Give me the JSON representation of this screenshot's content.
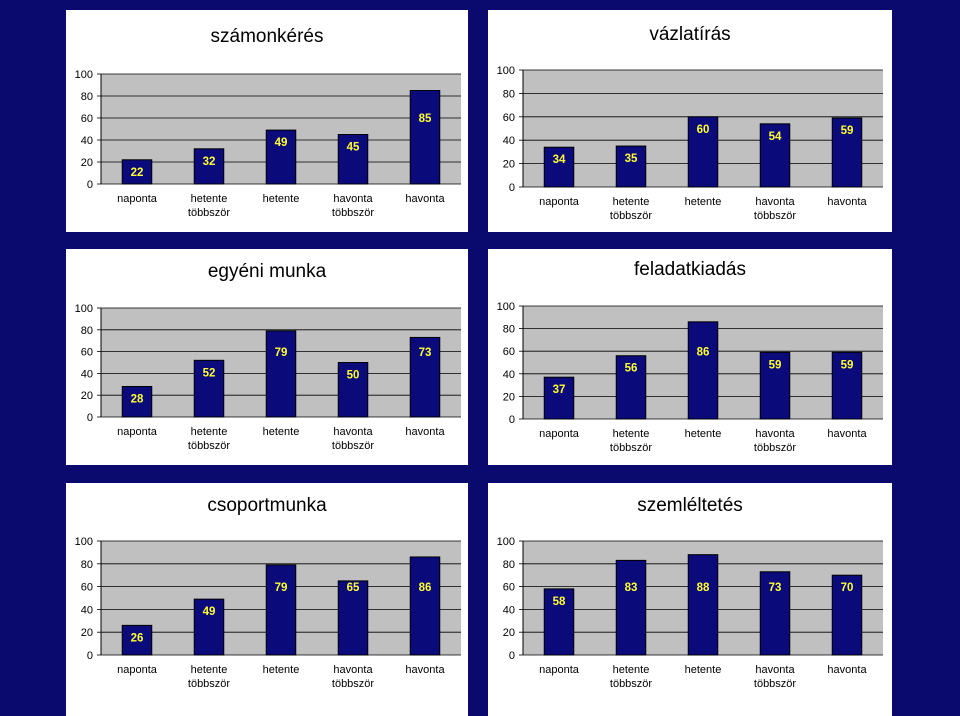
{
  "colors": {
    "background": "#0a0a6e",
    "bar_fill": "#0a0a7a",
    "plot_area": "#c0c0c0",
    "value_label": "#ffff33"
  },
  "chart_data": [
    {
      "type": "bar",
      "title": "számonkérés",
      "categories": [
        [
          "naponta"
        ],
        [
          "hetente",
          "többször"
        ],
        [
          "hetente"
        ],
        [
          "havonta",
          "többször"
        ],
        [
          "havonta"
        ]
      ],
      "values": [
        22,
        32,
        49,
        45,
        85
      ],
      "yticks": [
        "100",
        "80",
        "60",
        "40",
        "20",
        "0"
      ],
      "ylim": [
        0,
        100
      ]
    },
    {
      "type": "bar",
      "title": "vázlatírás",
      "categories": [
        [
          "naponta"
        ],
        [
          "hetente",
          "többször"
        ],
        [
          "hetente"
        ],
        [
          "havonta",
          "többször"
        ],
        [
          "havonta"
        ]
      ],
      "values": [
        34,
        35,
        60,
        54,
        59
      ],
      "yticks": [
        "100",
        "80",
        "60",
        "40",
        "20",
        "0"
      ],
      "ylim": [
        0,
        100
      ]
    },
    {
      "type": "bar",
      "title": "egyéni munka",
      "categories": [
        [
          "naponta"
        ],
        [
          "hetente",
          "többször"
        ],
        [
          "hetente"
        ],
        [
          "havonta",
          "többször"
        ],
        [
          "havonta"
        ]
      ],
      "values": [
        28,
        52,
        79,
        50,
        73
      ],
      "yticks": [
        "100",
        "80",
        "60",
        "40",
        "20",
        "0"
      ],
      "ylim": [
        0,
        100
      ]
    },
    {
      "type": "bar",
      "title": "feladatkiadás",
      "categories": [
        [
          "naponta"
        ],
        [
          "hetente",
          "többször"
        ],
        [
          "hetente"
        ],
        [
          "havonta",
          "többször"
        ],
        [
          "havonta"
        ]
      ],
      "values": [
        37,
        56,
        86,
        59,
        59
      ],
      "yticks": [
        "100",
        "80",
        "60",
        "40",
        "20",
        "0"
      ],
      "ylim": [
        0,
        100
      ]
    },
    {
      "type": "bar",
      "title": "csoportmunka",
      "categories": [
        [
          "naponta"
        ],
        [
          "hetente",
          "többször"
        ],
        [
          "hetente"
        ],
        [
          "havonta",
          "többször"
        ],
        [
          "havonta"
        ]
      ],
      "values": [
        26,
        49,
        79,
        65,
        86
      ],
      "yticks": [
        "100",
        "80",
        "60",
        "40",
        "20",
        "0"
      ],
      "ylim": [
        0,
        100
      ]
    },
    {
      "type": "bar",
      "title": "szemléltetés",
      "categories": [
        [
          "naponta"
        ],
        [
          "hetente",
          "többször"
        ],
        [
          "hetente"
        ],
        [
          "havonta",
          "többször"
        ],
        [
          "havonta"
        ]
      ],
      "values": [
        58,
        83,
        88,
        73,
        70
      ],
      "yticks": [
        "100",
        "80",
        "60",
        "40",
        "20",
        "0"
      ],
      "ylim": [
        0,
        100
      ]
    }
  ]
}
